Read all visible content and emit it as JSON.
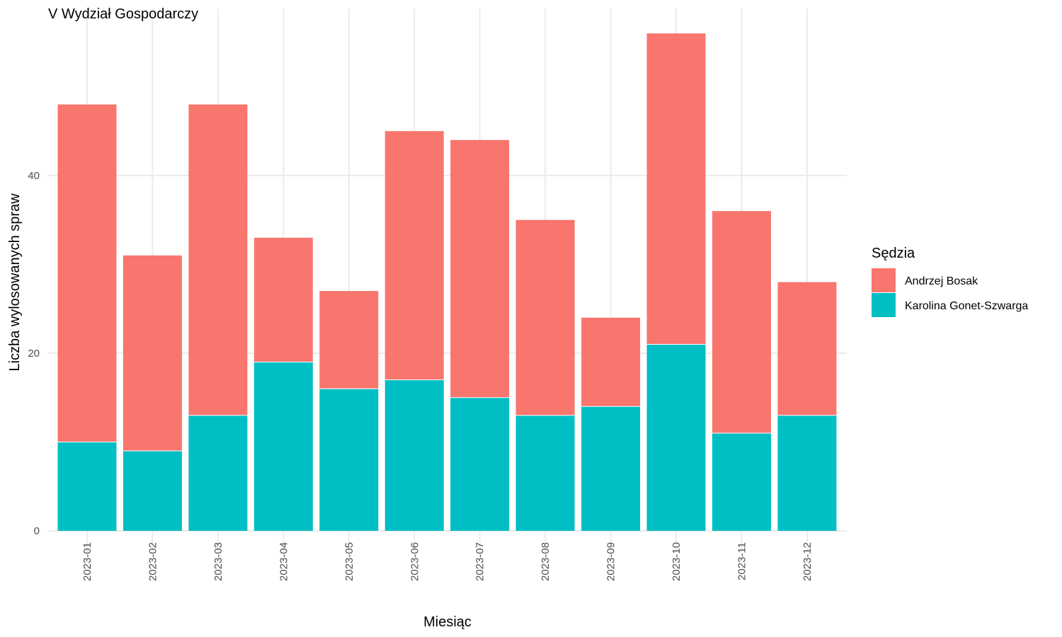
{
  "chart_data": {
    "type": "bar",
    "stacked": true,
    "title": "V Wydział Gospodarczy",
    "xlabel": "Miesiąc",
    "ylabel": "Liczba wylosowanych spraw",
    "ylim": [
      0,
      59
    ],
    "yticks": [
      0,
      20,
      40
    ],
    "grid": true,
    "legend_position": "right",
    "legend_title": "Sędzia",
    "categories": [
      "2023-01",
      "2023-02",
      "2023-03",
      "2023-04",
      "2023-05",
      "2023-06",
      "2023-07",
      "2023-08",
      "2023-09",
      "2023-10",
      "2023-11",
      "2023-12"
    ],
    "series": [
      {
        "name": "Andrzej Bosak",
        "color": "#F8766D",
        "values": [
          38,
          22,
          35,
          14,
          11,
          28,
          29,
          22,
          10,
          35,
          25,
          15
        ]
      },
      {
        "name": "Karolina Gonet-Szwarga",
        "color": "#00BFC4",
        "values": [
          10,
          9,
          13,
          19,
          16,
          17,
          15,
          13,
          14,
          21,
          11,
          13
        ]
      }
    ]
  }
}
